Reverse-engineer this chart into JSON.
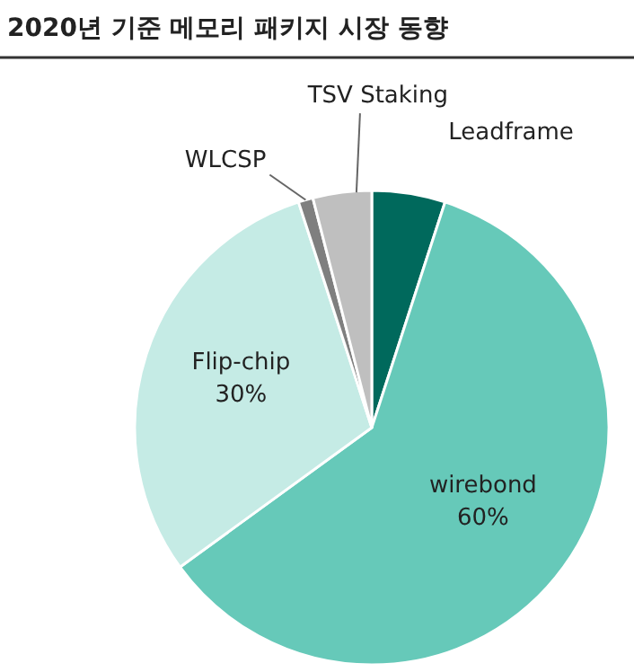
{
  "chart_data": {
    "type": "pie",
    "title": "2020년 기준 메모리 패키지 시장 동향",
    "categories": [
      "Leadframe",
      "wirebond",
      "Flip-chip",
      "WLCSP",
      "TSV Staking"
    ],
    "values": [
      5,
      60,
      30,
      1,
      4
    ],
    "value_labels": [
      null,
      "60%",
      "30%",
      null,
      null
    ],
    "colors": [
      "#00695c",
      "#66c9b9",
      "#c5ebe5",
      "#7f7f7f",
      "#bfbfbf"
    ]
  }
}
